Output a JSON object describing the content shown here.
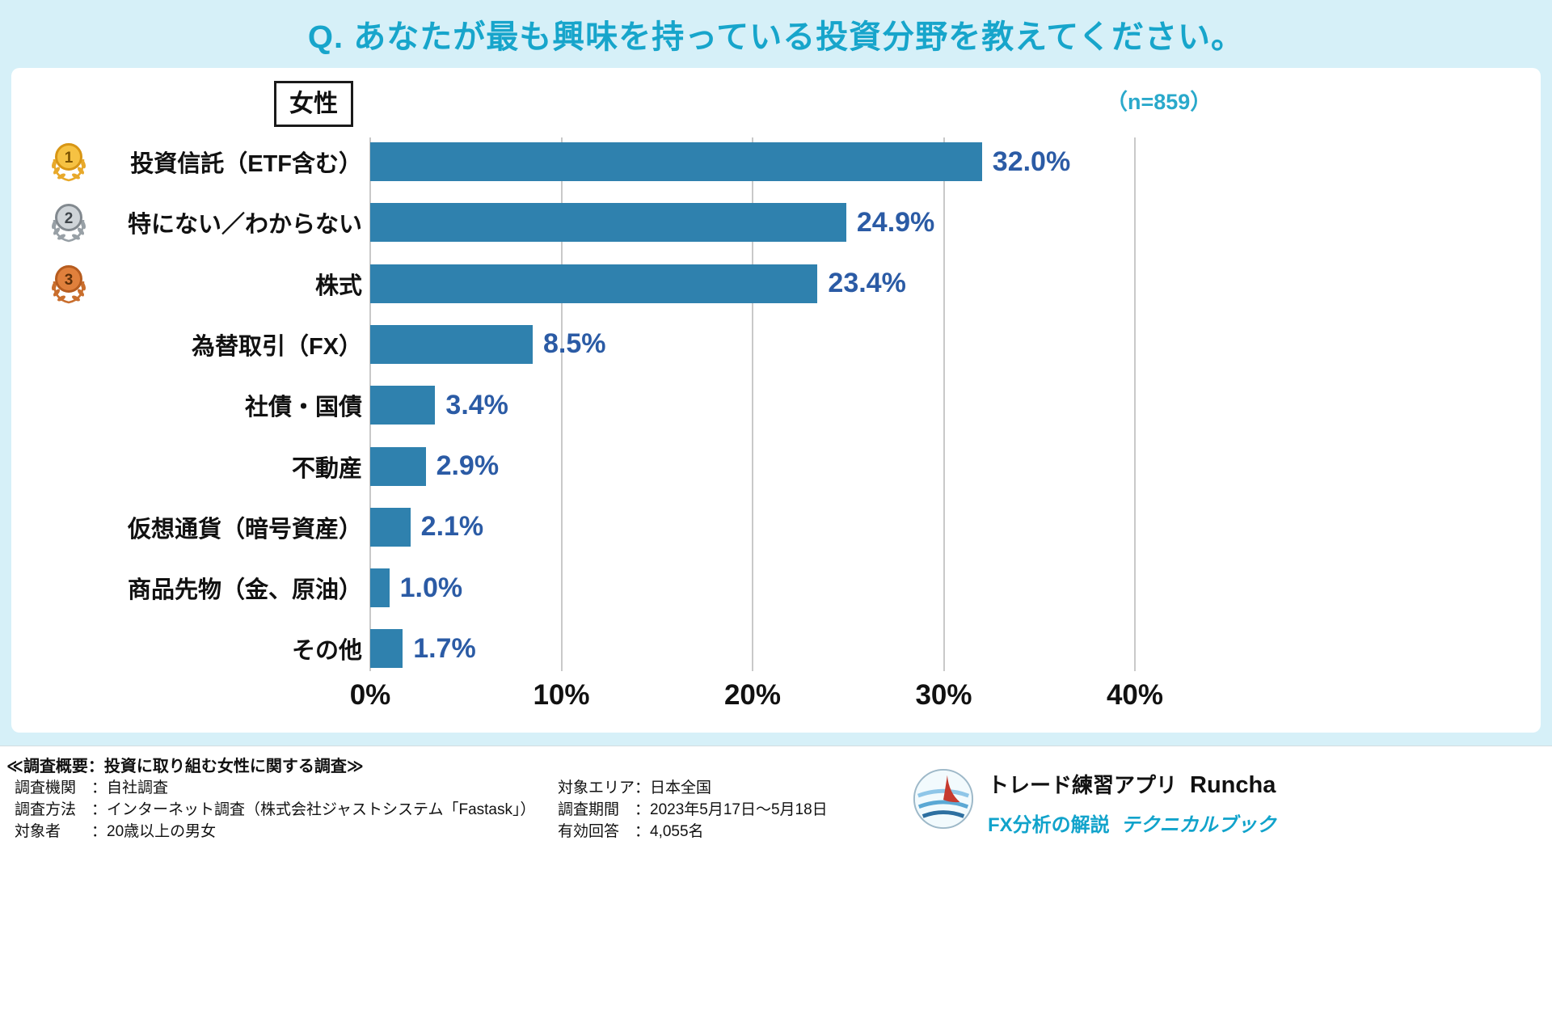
{
  "header": {
    "title": "Q. あなたが最も興味を持っている投資分野を教えてください。"
  },
  "chart": {
    "group_label": "女性",
    "sample_label": "（n=859）"
  },
  "chart_data": {
    "type": "bar",
    "orientation": "horizontal",
    "title": "Q. あなたが最も興味を持っている投資分野を教えてください。",
    "group": "女性",
    "n": 859,
    "categories": [
      "投資信託（ETF含む）",
      "特にない／わからない",
      "株式",
      "為替取引（FX）",
      "社債・国債",
      "不動産",
      "仮想通貨（暗号資産）",
      "商品先物（金、原油）",
      "その他"
    ],
    "values": [
      32.0,
      24.9,
      23.4,
      8.5,
      3.4,
      2.9,
      2.1,
      1.0,
      1.7
    ],
    "value_labels": [
      "32.0%",
      "24.9%",
      "23.4%",
      "8.5%",
      "3.4%",
      "2.9%",
      "2.1%",
      "1.0%",
      "1.7%"
    ],
    "rank_medals": [
      "gold",
      "silver",
      "bronze",
      null,
      null,
      null,
      null,
      null,
      null
    ],
    "xlim": [
      0,
      40
    ],
    "x_ticks": [
      {
        "value": 0,
        "label": "0%"
      },
      {
        "value": 10,
        "label": "10%"
      },
      {
        "value": 20,
        "label": "20%"
      },
      {
        "value": 30,
        "label": "30%"
      },
      {
        "value": 40,
        "label": "40%"
      }
    ],
    "grid": true,
    "xlabel": "",
    "ylabel": "",
    "bar_color": "#2f81ae",
    "value_label_color": "#2b5ba5"
  },
  "colors": {
    "accent_cyan": "#17a5cb",
    "background_cyan": "#d6f0f8",
    "bar_blue": "#2f81ae",
    "value_navy": "#2b5ba5"
  },
  "footer": {
    "survey_title": "≪調査概要：投資に取り組む女性に関する調査≫",
    "left_rows": [
      "調査機関　：自社調査",
      "調査方法　：インターネット調査（株式会社ジャストシステム「Fastask」）",
      "対象者　　：20歳以上の男女"
    ],
    "right_rows": [
      "対象エリア：日本全国",
      "調査期間　：2023年5月17日〜5月18日",
      "有効回答　：4,055名"
    ],
    "logo": {
      "app_label": "トレード練習アプリ",
      "app_name": "Runcha",
      "sub_label": "FX分析の解説",
      "sub_name": "テクニカルブック"
    }
  }
}
